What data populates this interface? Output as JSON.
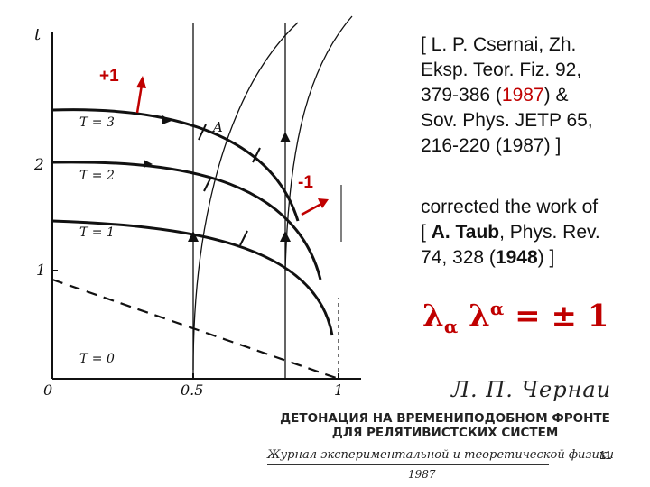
{
  "diagram": {
    "axis_t": "t",
    "tick_t_2": "2",
    "tick_t_1": "1",
    "tick_x_0": "0",
    "tick_x_05": "0.5",
    "tick_x_1": "1",
    "label_T3": "T = 3",
    "label_T2": "T = 2",
    "label_T1": "T = 1",
    "label_T0": "T = 0",
    "label_A": "A",
    "marker_plus": "+1",
    "marker_minus": "-1",
    "marker_color": "#c00000"
  },
  "reference": {
    "line1_prefix": "[ L. P. Csernai, Zh.",
    "line2": "Eksp. Teor. Fiz. 92,",
    "line3_prefix": "379-386 (",
    "line3_year": "1987",
    "line3_suffix": ")  &",
    "line4": "Sov. Phys. JETP 65,",
    "line5": "216-220 (1987) ]"
  },
  "correction": {
    "line1": "corrected the work of",
    "line2_prefix": "[ ",
    "line2_author": "A. Taub",
    "line2_suffix": ", Phys. Rev.",
    "line3_prefix": "74, 328 (",
    "line3_year": "1948",
    "line3_suffix": ") ]"
  },
  "formula": {
    "lambda1": "λ",
    "sub": "α",
    "lambda2": " λ",
    "sup": "α",
    "rest": " = ± 1"
  },
  "russian": {
    "author": "Л. П. Чернаи",
    "title_line1": "ДЕТОНАЦИЯ НА ВРЕМЕНИПОДОБНОМ ФРОНТЕ",
    "title_line2": "ДЛЯ РЕЛЯТИВИСТСКИХ СИСТЕМ",
    "journal": "Журнал экспериментальной и теоретической физики",
    "year": "1987"
  },
  "slide_number": "11"
}
